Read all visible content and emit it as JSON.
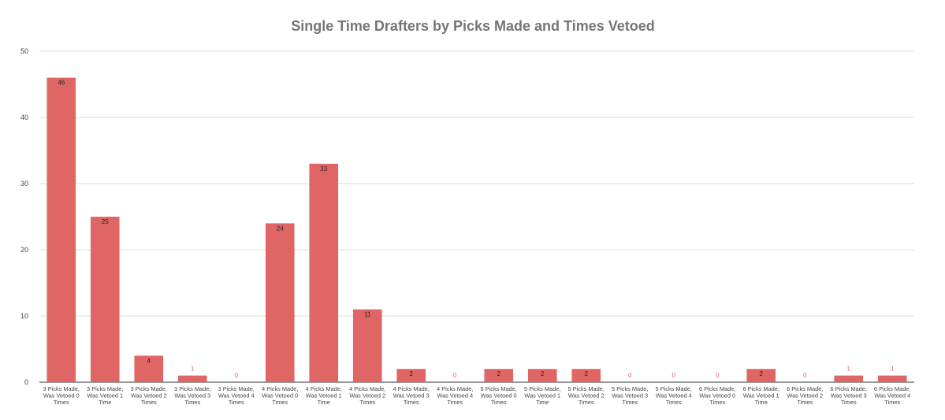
{
  "chart_data": {
    "type": "bar",
    "title": "Single Time Drafters by Picks Made and Times Vetoed",
    "xlabel": "",
    "ylabel": "",
    "ylim": [
      0,
      50
    ],
    "yticks": [
      "0",
      "10",
      "20",
      "30",
      "40",
      "50"
    ],
    "grid": true,
    "legend": "none",
    "bar_color": "#e06666",
    "categories": [
      [
        "3 Picks Made,",
        "Was Vetoed 0",
        "Times"
      ],
      [
        "3 Picks Made,",
        "Was Vetoed 1",
        "Time"
      ],
      [
        "3 Picks Made,",
        "Was Vetoed 2",
        "Times"
      ],
      [
        "3 Picks Made,",
        "Was Vetoed 3",
        "Times"
      ],
      [
        "3 Picks Made,",
        "Was Vetoed 4",
        "Times"
      ],
      [
        "4 Picks Made,",
        "Was Vetoed 0",
        "Times"
      ],
      [
        "4 Picks Made,",
        "Was Vetoed 1",
        "Time"
      ],
      [
        "4 Picks Made,",
        "Was Vetoed 2",
        "Times"
      ],
      [
        "4 Picks Made,",
        "Was Vetoed 3",
        "Times"
      ],
      [
        "4 Picks Made,",
        "Was Vetoed 4",
        "Times"
      ],
      [
        "5 Picks Made,",
        "Was Vetoed 0",
        "Times"
      ],
      [
        "5 Picks Made,",
        "Was Vetoed 1",
        "Time"
      ],
      [
        "5 Picks Made,",
        "Was Vetoed 2",
        "Times"
      ],
      [
        "5 Picks Made,",
        "Was Vetoed 3",
        "Times"
      ],
      [
        "5 Picks Made,",
        "Was Vetoed 4",
        "Times"
      ],
      [
        "6 Picks Made,",
        "Was Vetoed 0",
        "Times"
      ],
      [
        "6 Picks Made,",
        "Was Vetoed 1",
        "Time"
      ],
      [
        "6 Picks Made,",
        "Was Vetoed 2",
        "Times"
      ],
      [
        "6 Picks Made,",
        "Was Vetoed 3",
        "Times"
      ],
      [
        "6 Picks Made,",
        "Was Vetoed 4",
        "Times"
      ]
    ],
    "values": [
      46,
      25,
      4,
      1,
      0,
      24,
      33,
      11,
      2,
      0,
      2,
      2,
      2,
      0,
      0,
      0,
      2,
      0,
      1,
      1
    ],
    "data_labels": [
      "46",
      "25",
      "4",
      "1",
      "0",
      "24",
      "33",
      "11",
      "2",
      "0",
      "2",
      "2",
      "2",
      "0",
      "0",
      "0",
      "2",
      "0",
      "1",
      "1"
    ]
  }
}
